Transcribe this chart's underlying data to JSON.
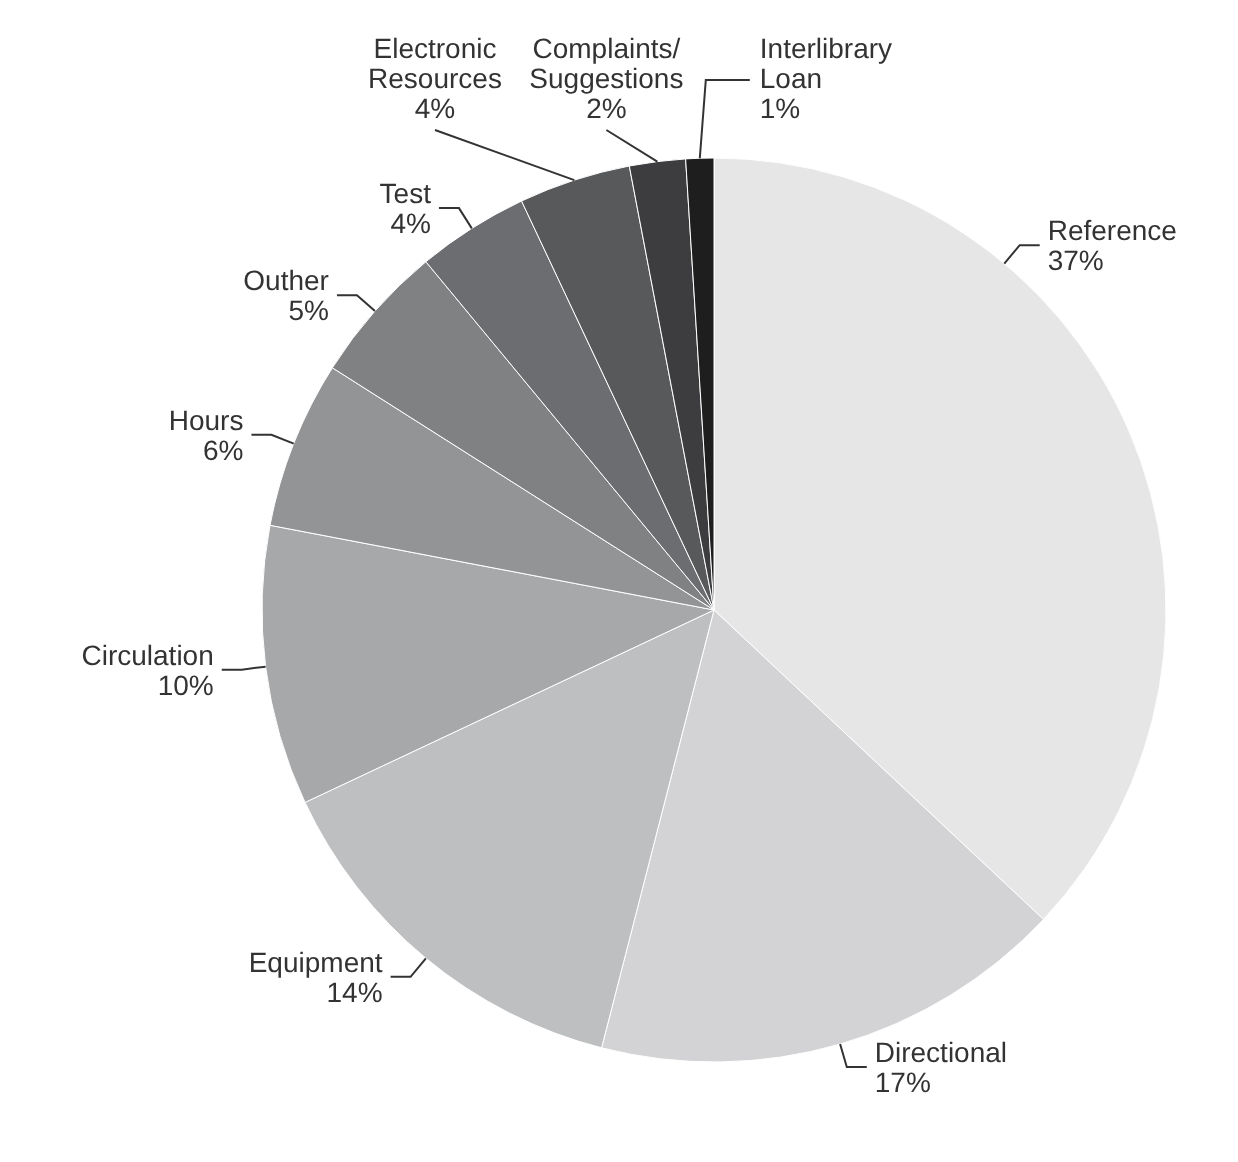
{
  "chart_data": {
    "type": "pie",
    "categories": [
      "Reference",
      "Directional",
      "Equipment",
      "Circulation",
      "Hours",
      "Outher",
      "Test",
      "Electronic Resources",
      "Complaints/ Suggestions",
      "Interlibrary Loan"
    ],
    "values": [
      37,
      17,
      14,
      10,
      6,
      5,
      4,
      4,
      2,
      1
    ],
    "colors": [
      "#e6e6e7",
      "#d3d3d5",
      "#bebfc1",
      "#a7a8aa",
      "#939496",
      "#808183",
      "#6c6d70",
      "#58595b",
      "#3d3d3f",
      "#1e1e1f"
    ],
    "value_labels": [
      "37%",
      "17%",
      "14%",
      "10%",
      "6%",
      "5%",
      "4%",
      "4%",
      "2%",
      "1%"
    ]
  }
}
